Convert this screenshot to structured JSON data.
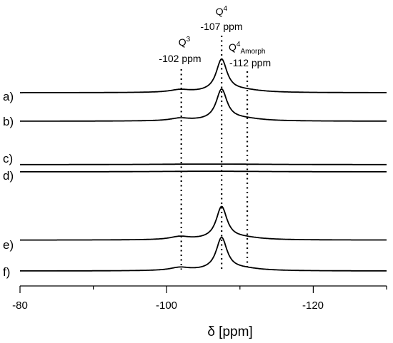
{
  "chart_data": {
    "type": "line",
    "x_label": "δ [ppm]",
    "x_axis": {
      "range": [
        -80,
        -130
      ],
      "reversed": true,
      "major_ticks": [
        -80,
        -100,
        -120
      ],
      "minor_ticks": [
        -90,
        -110,
        -130
      ],
      "tick_labels": [
        "-80",
        "-100",
        "-120"
      ]
    },
    "grid": false,
    "y_axis": "hidden",
    "annotations": [
      {
        "species": "Q",
        "sup": "3",
        "sub": "",
        "shift_label": "-102 ppm",
        "x": -102
      },
      {
        "species": "Q",
        "sup": "4",
        "sub": "",
        "shift_label": "-107 ppm",
        "x": -107.5
      },
      {
        "species": "Q",
        "sup": "4",
        "sub": "Amorph",
        "shift_label": "-112 ppm",
        "x": -111
      }
    ],
    "series": [
      {
        "name": "a)",
        "baseline": 0.85,
        "peaks": [
          {
            "x": -101.8,
            "height": 0.5,
            "width": 1.6
          },
          {
            "x": -107.5,
            "height": 6.5,
            "width": 0.9
          },
          {
            "x": -110.5,
            "height": 0.45,
            "width": 3.0
          }
        ]
      },
      {
        "name": "b)",
        "baseline": 0.0,
        "peaks": [
          {
            "x": -101.8,
            "height": 0.5,
            "width": 1.6
          },
          {
            "x": -107.5,
            "height": 6.2,
            "width": 0.9
          },
          {
            "x": -110.5,
            "height": 0.45,
            "width": 3.0
          }
        ]
      },
      {
        "name": "c)",
        "baseline": 0.3,
        "peaks": [
          {
            "x": -106,
            "height": 0.12,
            "width": 9
          }
        ]
      },
      {
        "name": "d)",
        "baseline": 0.0,
        "peaks": [
          {
            "x": -106,
            "height": 0.12,
            "width": 9
          }
        ]
      },
      {
        "name": "e)",
        "baseline": 0.9,
        "peaks": [
          {
            "x": -101.8,
            "height": 0.6,
            "width": 1.6
          },
          {
            "x": -107.5,
            "height": 6.5,
            "width": 0.9
          },
          {
            "x": -110.5,
            "height": 0.4,
            "width": 3.0
          }
        ]
      },
      {
        "name": "f)",
        "baseline": 0.0,
        "peaks": [
          {
            "x": -101.8,
            "height": 0.6,
            "width": 1.6
          },
          {
            "x": -107.5,
            "height": 6.5,
            "width": 0.9
          },
          {
            "x": -110.5,
            "height": 0.4,
            "width": 3.0
          }
        ]
      }
    ]
  }
}
